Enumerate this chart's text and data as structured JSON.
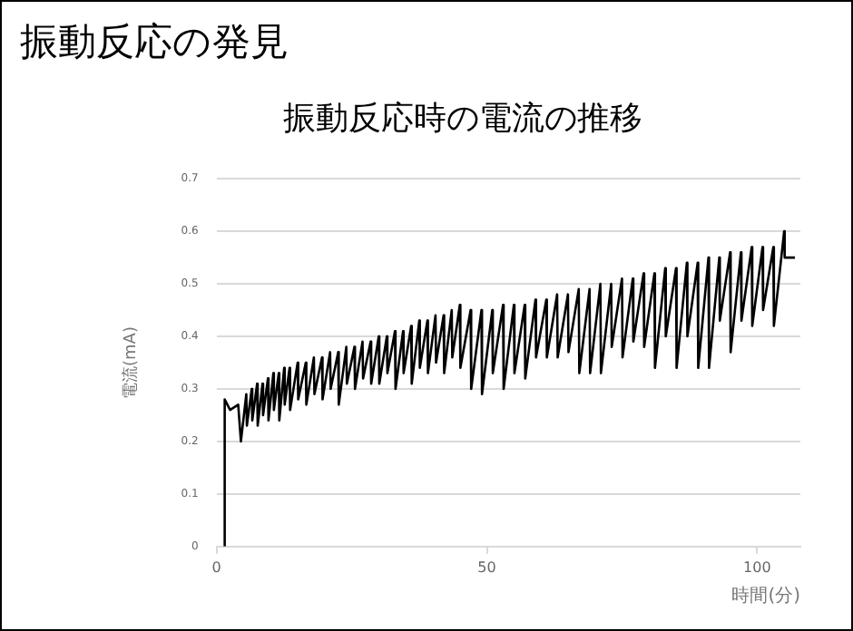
{
  "chart_data": {
    "type": "line",
    "title": "振動反応の発見",
    "subtitle": "振動反応時の電流の推移",
    "xlabel": "時間(分)",
    "ylabel": "電流(mA)",
    "xlim": [
      0,
      108
    ],
    "xticks": [
      0,
      50,
      100
    ],
    "ylim": [
      0,
      0.7
    ],
    "yticks": [
      0,
      0.1,
      0.2,
      0.3,
      0.4,
      0.5,
      0.6,
      0.7
    ],
    "grid": "y",
    "legend": false,
    "series": [
      {
        "color": "#000000",
        "x": [
          1.5,
          1.5,
          2.5,
          4,
          4.5,
          5.5,
          5.6,
          6.5,
          6.6,
          7.5,
          7.6,
          8.5,
          8.6,
          9.5,
          9.6,
          10.5,
          10.6,
          11.5,
          11.6,
          12.5,
          12.6,
          13.5,
          13.6,
          15,
          15.1,
          16.5,
          16.6,
          18,
          18.1,
          19.5,
          19.6,
          21,
          21.1,
          22.5,
          22.6,
          24,
          24.1,
          25.5,
          25.6,
          27,
          27.1,
          28.5,
          28.6,
          30,
          30.1,
          31.5,
          31.6,
          33,
          33.1,
          34.5,
          34.6,
          36,
          36.1,
          37.5,
          37.6,
          39,
          39.1,
          40.5,
          40.6,
          42,
          42.1,
          43.5,
          43.6,
          45,
          45.1,
          47,
          47.1,
          49,
          49.1,
          51,
          51.1,
          53,
          53.1,
          55,
          55.1,
          57,
          57.1,
          59,
          59.1,
          61,
          61.1,
          63,
          63.1,
          65,
          65.1,
          67,
          67.1,
          69,
          69.1,
          71,
          71.1,
          73,
          73.1,
          75,
          75.1,
          77,
          77.1,
          79,
          79.1,
          81,
          81.1,
          83,
          83.1,
          85,
          85.1,
          87,
          87.1,
          89,
          89.1,
          91,
          91.1,
          93,
          93.1,
          95,
          95.1,
          97,
          97.1,
          99,
          99.1,
          101,
          101.1,
          103,
          103.1,
          105,
          105.1,
          107
        ],
        "values": [
          0,
          0.28,
          0.26,
          0.27,
          0.2,
          0.29,
          0.23,
          0.3,
          0.24,
          0.31,
          0.23,
          0.31,
          0.25,
          0.32,
          0.24,
          0.33,
          0.26,
          0.33,
          0.24,
          0.34,
          0.27,
          0.34,
          0.26,
          0.35,
          0.28,
          0.35,
          0.27,
          0.36,
          0.29,
          0.36,
          0.28,
          0.37,
          0.3,
          0.37,
          0.27,
          0.38,
          0.31,
          0.38,
          0.3,
          0.39,
          0.32,
          0.39,
          0.31,
          0.4,
          0.31,
          0.4,
          0.33,
          0.41,
          0.3,
          0.41,
          0.33,
          0.42,
          0.31,
          0.43,
          0.34,
          0.43,
          0.33,
          0.44,
          0.35,
          0.44,
          0.33,
          0.45,
          0.36,
          0.46,
          0.34,
          0.45,
          0.3,
          0.45,
          0.29,
          0.45,
          0.33,
          0.46,
          0.3,
          0.46,
          0.33,
          0.46,
          0.32,
          0.47,
          0.36,
          0.47,
          0.36,
          0.48,
          0.36,
          0.48,
          0.37,
          0.49,
          0.33,
          0.49,
          0.33,
          0.5,
          0.33,
          0.5,
          0.38,
          0.51,
          0.36,
          0.51,
          0.39,
          0.52,
          0.38,
          0.52,
          0.34,
          0.53,
          0.4,
          0.53,
          0.34,
          0.54,
          0.4,
          0.54,
          0.34,
          0.55,
          0.34,
          0.55,
          0.43,
          0.56,
          0.37,
          0.56,
          0.43,
          0.57,
          0.42,
          0.57,
          0.45,
          0.57,
          0.42,
          0.6,
          0.55,
          0.55
        ]
      }
    ]
  }
}
